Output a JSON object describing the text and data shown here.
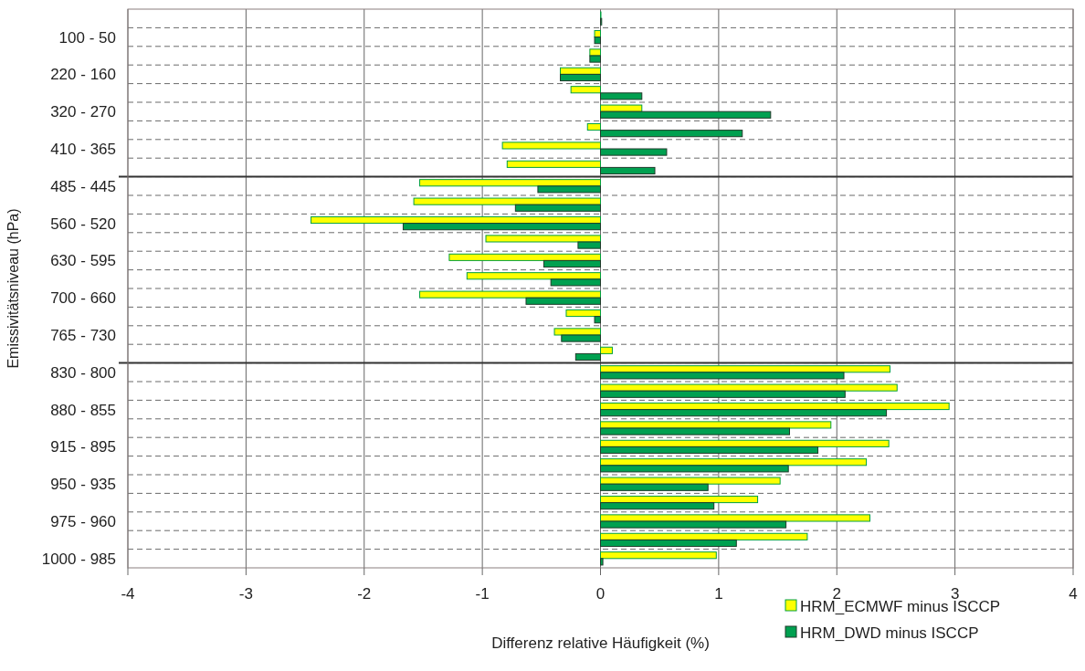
{
  "chart_data": {
    "type": "bar",
    "orientation": "horizontal",
    "xlabel": "Differenz relative Häufigkeit (%)",
    "ylabel": "Emissivitätsniveau (hPa)",
    "categories": [
      null,
      "100 - 50",
      null,
      "220 - 160",
      null,
      "320 - 270",
      null,
      "410 - 365",
      null,
      "485 - 445",
      null,
      "560 - 520",
      null,
      "630 - 595",
      null,
      "700 - 660",
      null,
      "765 - 730",
      null,
      "830 - 800",
      null,
      "880 - 855",
      null,
      "915 - 895",
      null,
      "950 - 935",
      null,
      "975 - 960",
      null,
      "1000 - 985"
    ],
    "series": [
      {
        "name": "HRM_ECMWF minus ISCCP",
        "color": "#ffff00",
        "values": [
          0,
          -0.05,
          -0.09,
          -0.34,
          -0.25,
          0.35,
          -0.11,
          -0.83,
          -0.79,
          -1.53,
          -1.58,
          -2.45,
          -0.97,
          -1.28,
          -1.13,
          -1.53,
          -0.29,
          -0.39,
          0.1,
          2.45,
          2.51,
          2.95,
          1.95,
          2.44,
          2.25,
          1.52,
          1.33,
          2.28,
          1.75,
          0.98
        ]
      },
      {
        "name": "HRM_DWD minus ISCCP",
        "color": "#00a050",
        "values": [
          0.01,
          -0.05,
          -0.09,
          -0.34,
          0.35,
          1.44,
          1.2,
          0.56,
          0.46,
          -0.53,
          -0.72,
          -1.67,
          -0.19,
          -0.48,
          -0.42,
          -0.63,
          -0.05,
          -0.33,
          -0.21,
          2.06,
          2.07,
          2.42,
          1.6,
          1.84,
          1.59,
          0.91,
          0.96,
          1.57,
          1.15,
          0.02
        ]
      }
    ],
    "xlim": [
      -4,
      4
    ],
    "xticks": [
      -4,
      -3,
      -2,
      -1,
      0,
      1,
      2,
      3,
      4
    ],
    "grid": true,
    "legend": "bottom right"
  }
}
